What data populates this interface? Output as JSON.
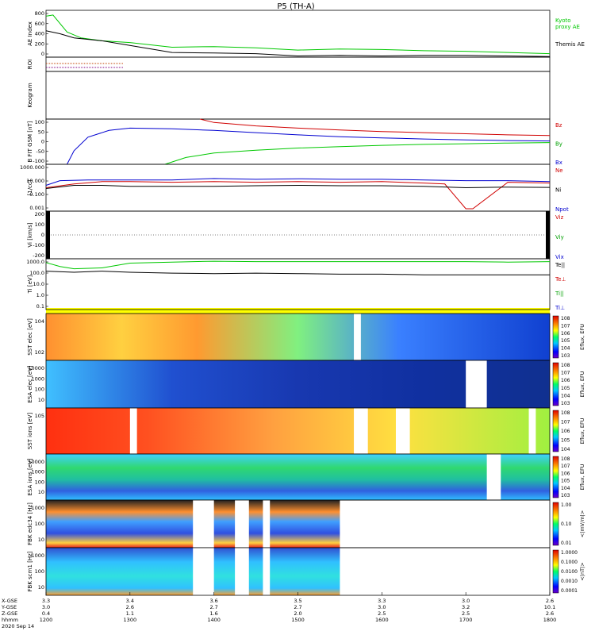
{
  "title": "P5 (TH-A)",
  "chart_data": {
    "type": "line",
    "time_axis": {
      "ticks": [
        "1200",
        "1300",
        "1400",
        "1500",
        "1600",
        "1700",
        "1800"
      ],
      "rows": [
        {
          "label": "X-GSE",
          "values": [
            "3.3",
            "3.4",
            "3.6",
            "3.5",
            "3.3",
            "3.0",
            "2.6"
          ]
        },
        {
          "label": "Y-GSE",
          "values": [
            "3.0",
            "2.6",
            "2.7",
            "2.7",
            "3.0",
            "3.2",
            "10.1"
          ]
        },
        {
          "label": "Z-GSE",
          "values": [
            "0.4",
            "1.1",
            "1.6",
            "2.0",
            "2.5",
            "2.5",
            "2.6"
          ]
        },
        {
          "label": "hhmm",
          "values": [
            "1200",
            "1300",
            "1400",
            "1500",
            "1600",
            "1700",
            "1800"
          ]
        }
      ],
      "date": "2020 Sep 14"
    },
    "panels": [
      {
        "id": "ae",
        "type": "line",
        "ylabel": "AE Index",
        "yticks": [
          "800",
          "600",
          "400",
          "200",
          "0"
        ],
        "ylim": [
          0,
          800
        ],
        "series": [
          {
            "name": "Kyoto proxy AE",
            "color": "#00c800",
            "x": [
              1200,
              1205,
              1215,
              1225,
              1240,
              1300,
              1330,
              1400,
              1430,
              1500,
              1530,
              1600,
              1630,
              1700,
              1730,
              1800
            ],
            "y": [
              700,
              720,
              430,
              330,
              280,
              250,
              170,
              180,
              160,
              120,
              140,
              130,
              110,
              100,
              80,
              60
            ]
          },
          {
            "name": "Themis AE",
            "color": "#000000",
            "x": [
              1200,
              1210,
              1220,
              1240,
              1300,
              1330,
              1400,
              1430,
              1500,
              1530,
              1600,
              1630,
              1700,
              1730,
              1800
            ],
            "y": [
              450,
              400,
              330,
              280,
              200,
              80,
              70,
              60,
              20,
              30,
              20,
              30,
              30,
              20,
              10
            ]
          }
        ]
      },
      {
        "id": "roi",
        "type": "lines",
        "ylabel": "ROI",
        "series": [
          {
            "color": "#c04000",
            "x": [
              1200,
              1255
            ]
          },
          {
            "color": "#800080",
            "x": [
              1200,
              1255
            ]
          }
        ]
      },
      {
        "id": "keogram",
        "type": "empty",
        "ylabel": "Keogram"
      },
      {
        "id": "bfit",
        "type": "line",
        "ylabel": "B FIT GSM [nT]",
        "yticks": [
          "100",
          "50",
          "0",
          "-50",
          "-100"
        ],
        "ylim": [
          -100,
          100
        ],
        "legend": [
          "Bz",
          "By",
          "Bx"
        ],
        "series": [
          {
            "name": "Bz",
            "color": "#d00000",
            "x": [
              1350,
              1400,
              1430,
              1500,
              1530,
              1600,
              1630,
              1700,
              1730,
              1800
            ],
            "y": [
              100,
              85,
              70,
              60,
              52,
              45,
              40,
              35,
              30,
              27
            ]
          },
          {
            "name": "By",
            "color": "#0000d0",
            "x": [
              1215,
              1220,
              1230,
              1245,
              1300,
              1330,
              1400,
              1430,
              1500,
              1530,
              1600,
              1630,
              1700,
              1730,
              1800
            ],
            "y": [
              -100,
              -40,
              20,
              50,
              60,
              57,
              50,
              40,
              30,
              22,
              17,
              12,
              8,
              5,
              3
            ]
          },
          {
            "name": "Bx",
            "color": "#00c800",
            "x": [
              1325,
              1340,
              1400,
              1430,
              1500,
              1530,
              1600,
              1630,
              1700,
              1730,
              1800
            ],
            "y": [
              -100,
              -70,
              -50,
              -38,
              -28,
              -22,
              -16,
              -12,
              -9,
              -6,
              -4
            ]
          }
        ]
      },
      {
        "id": "density",
        "type": "line",
        "ylabel": "[1/cc]",
        "yticks": [
          "1000.000",
          "10.000",
          "0.100",
          "0.001"
        ],
        "ylog": true,
        "ylim": [
          0.001,
          1000
        ],
        "legend": [
          "Ne",
          "Ni",
          "Npot"
        ],
        "series": [
          {
            "name": "Ne",
            "color": "#d00000",
            "x": [
              1200,
              1220,
              1240,
              1300,
              1330,
              1400,
              1430,
              1500,
              1530,
              1600,
              1630,
              1645,
              1700,
              1705,
              1730,
              1800
            ],
            "y": [
              1,
              3,
              6,
              6,
              5,
              6,
              5,
              6,
              5,
              6,
              4,
              3,
              0.002,
              0.002,
              5,
              4
            ]
          },
          {
            "name": "Ni",
            "color": "#0000d0",
            "x": [
              1200,
              1210,
              1230,
              1300,
              1330,
              1400,
              1430,
              1500,
              1530,
              1600,
              1630,
              1700,
              1730,
              1800
            ],
            "y": [
              2,
              8,
              10,
              10,
              10,
              15,
              12,
              14,
              12,
              12,
              10,
              8,
              8,
              6
            ]
          },
          {
            "name": "Npot",
            "color": "#000000",
            "x": [
              1200,
              1220,
              1240,
              1300,
              1330,
              1400,
              1430,
              1500,
              1530,
              1600,
              1630,
              1700,
              1730,
              1800
            ],
            "y": [
              0.8,
              2,
              2,
              1.5,
              1.5,
              1.5,
              1.8,
              2,
              1.8,
              1.8,
              1.5,
              1,
              1.2,
              1.1
            ]
          }
        ]
      },
      {
        "id": "velocity",
        "type": "line",
        "ylabel": "Vi [km/s]",
        "yticks": [
          "200",
          "100",
          "0",
          "-100",
          "-200"
        ],
        "ylim": [
          -250,
          250
        ],
        "legend": [
          "Viz",
          "Viy",
          "Vix"
        ],
        "series": []
      },
      {
        "id": "temperature",
        "type": "line",
        "ylabel": "Ti [eV]",
        "yticks": [
          "1000.0",
          "100.0",
          "10.0",
          "1.0",
          "0.1"
        ],
        "ylog": true,
        "ylim": [
          0.05,
          2000
        ],
        "legend": [
          "Te||",
          "Te⊥",
          "Ti||",
          "Ti⊥"
        ],
        "series": [
          {
            "name": "Te||",
            "color": "#00c800",
            "x": [
              1200,
              1210,
              1220,
              1240,
              1300,
              1330,
              1400,
              1430,
              1500,
              1530,
              1600,
              1630,
              1700,
              1730,
              1800
            ],
            "y": [
              900,
              400,
              250,
              300,
              800,
              1000,
              1200,
              1100,
              1100,
              1100,
              1100,
              1100,
              1100,
              1000,
              1100
            ]
          },
          {
            "name": "Te⊥",
            "color": "#000000",
            "x": [
              1200,
              1220,
              1240,
              1300,
              1330,
              1400,
              1430,
              1500,
              1530,
              1600,
              1630,
              1700,
              1730,
              1800
            ],
            "y": [
              150,
              120,
              150,
              120,
              100,
              90,
              100,
              90,
              80,
              80,
              70,
              70,
              70,
              70
            ]
          }
        ]
      },
      {
        "id": "sst_e",
        "type": "heatmap",
        "ylabel": "SST elec [eV]",
        "colorbar": [
          "10^8",
          "10^7",
          "10^6",
          "10^5",
          "10^4",
          "10^3"
        ],
        "cb_label": "Eflux, EFU",
        "yticks": [
          "10^4",
          "10^2"
        ]
      },
      {
        "id": "esa_e",
        "type": "heatmap",
        "ylabel": "ESA elec [eV]",
        "colorbar": [
          "10^8",
          "10^7",
          "10^6",
          "10^5",
          "10^4",
          "10^3"
        ],
        "cb_label": "Eflux, EFU",
        "yticks": [
          "10000",
          "1000",
          "100",
          "10"
        ]
      },
      {
        "id": "sst_i",
        "type": "heatmap",
        "ylabel": "SST ions [eV]",
        "colorbar": [
          "10^8",
          "10^7",
          "10^6",
          "10^5",
          "10^4"
        ],
        "cb_label": "Eflux, EFU",
        "yticks": [
          "10^5"
        ]
      },
      {
        "id": "esa_i",
        "type": "heatmap",
        "ylabel": "ESA ions [eV]",
        "colorbar": [
          "10^8",
          "10^7",
          "10^6",
          "10^5",
          "10^4",
          "10^3"
        ],
        "cb_label": "Eflux, EFU",
        "yticks": [
          "10000",
          "1000",
          "100",
          "10"
        ]
      },
      {
        "id": "fbk_e",
        "type": "heatmap",
        "ylabel": "FBK edc34 [Hz]",
        "colorbar": [
          "1.00",
          "0.10",
          "0.01"
        ],
        "cb_label": "<|mV/m|>",
        "yticks": [
          "1000",
          "100",
          "10"
        ]
      },
      {
        "id": "fbk_b",
        "type": "heatmap",
        "ylabel": "FBK scm1 [Hz]",
        "colorbar": [
          "1.0000",
          "0.1000",
          "0.0100",
          "0.0010",
          "0.0001"
        ],
        "cb_label": "<|nT|>",
        "yticks": [
          "1000",
          "100",
          "10"
        ]
      }
    ]
  }
}
